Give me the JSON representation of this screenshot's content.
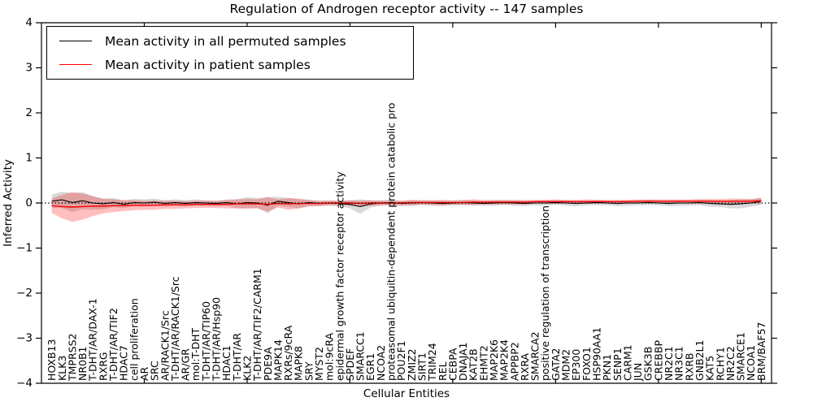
{
  "title": "Regulation of Androgen receptor activity -- 147 samples",
  "legend": {
    "items": [
      {
        "label": "Mean activity in all permuted samples",
        "color": "#000000"
      },
      {
        "label": "Mean activity in patient samples",
        "color": "#ff0000"
      }
    ]
  },
  "axes": {
    "ylabel": "Inferred Activity",
    "xlabel": "Cellular Entities",
    "yticks": [
      {
        "value": 4,
        "label": "4"
      },
      {
        "value": 3,
        "label": "3"
      },
      {
        "value": 2,
        "label": "2"
      },
      {
        "value": 1,
        "label": "1"
      },
      {
        "value": 0,
        "label": "0"
      },
      {
        "value": -1,
        "label": "−1"
      },
      {
        "value": -2,
        "label": "−2"
      },
      {
        "value": -3,
        "label": "−3"
      },
      {
        "value": -4,
        "label": "−4"
      }
    ]
  },
  "chart_data": {
    "type": "line",
    "title": "Regulation of Androgen receptor activity -- 147 samples",
    "xlabel": "Cellular Entities",
    "ylabel": "Inferred Activity",
    "ylim": [
      -4,
      4
    ],
    "grid": false,
    "legend_position": "upper left",
    "zero_line": true,
    "x_major_tick_every": 10,
    "categories": [
      "HOXB13",
      "KLK3",
      "TMPRSS2",
      "NR0B1",
      "T-DHT/AR/DAX-1",
      "RXRG",
      "T-DHT/AR/TIF2",
      "HDAC7",
      "cell proliferation",
      "AR",
      "SRC",
      "AR/RACK1/Src",
      "T-DHT/AR/RACK1/Src",
      "AR/GR",
      "mol:T-DHT",
      "T-DHT/AR/TIP60",
      "T-DHT/AR/Hsp90",
      "HDAC1",
      "T-DHT/AR",
      "KLK2",
      "T-DHT/AR/TIF2/CARM1",
      "PDE9A",
      "MAPK14",
      "RXRs/9cRA",
      "MAPK8",
      "SRY",
      "MYST2",
      "mol:9cRA",
      "epidermal growth factor receptor activity",
      "SPDEF",
      "SMARCC1",
      "EGR1",
      "NCOA2",
      "proteasomal ubiquitin-dependent protein catabolic pro",
      "POU2F1",
      "ZMIZ2",
      "SIRT1",
      "TRIM24",
      "REL",
      "CEBPA",
      "DNAJA1",
      "KAT2B",
      "EHMT2",
      "MAP2K6",
      "MAP2K4",
      "APPBP2",
      "RXRA",
      "SMARCA2",
      "positive regulation of transcription",
      "GATA2",
      "MDM2",
      "EP300",
      "FOXO1",
      "HSP90AA1",
      "PKN1",
      "SENP1",
      "CARM1",
      "JUN",
      "GSK3B",
      "CREBBP",
      "NR2C1",
      "NR3C1",
      "RXRB",
      "GNB2L1",
      "KAT5",
      "RCHY1",
      "NR2C2",
      "SMARCE1",
      "NCOA1",
      "BRM/BAF57"
    ],
    "series": [
      {
        "name": "Mean activity in all permuted samples",
        "color": "#000000",
        "band_color": "rgba(0,0,0,0.15)",
        "values": [
          0.04,
          0.07,
          0.01,
          0.05,
          0.0,
          -0.02,
          0.01,
          -0.03,
          0.01,
          0.0,
          0.02,
          -0.01,
          0.01,
          -0.01,
          0.01,
          0.0,
          -0.01,
          0.01,
          -0.02,
          0.01,
          0.0,
          -0.05,
          0.04,
          0.01,
          -0.02,
          0.01,
          -0.01,
          0.0,
          -0.01,
          -0.03,
          -0.08,
          -0.02,
          0.0,
          0.01,
          -0.01,
          0.0,
          0.01,
          0.0,
          -0.01,
          0.0,
          0.01,
          0.0,
          -0.01,
          0.0,
          0.01,
          0.0,
          -0.01,
          0.0,
          0.0,
          0.01,
          0.0,
          -0.01,
          0.0,
          0.01,
          0.0,
          -0.01,
          0.0,
          0.0,
          0.01,
          0.0,
          -0.01,
          0.0,
          0.0,
          0.01,
          -0.01,
          -0.02,
          -0.03,
          -0.02,
          0.0,
          0.04
        ],
        "sd": [
          0.15,
          0.18,
          0.21,
          0.19,
          0.15,
          0.12,
          0.1,
          0.09,
          0.08,
          0.08,
          0.08,
          0.07,
          0.07,
          0.07,
          0.07,
          0.06,
          0.06,
          0.07,
          0.1,
          0.12,
          0.11,
          0.18,
          0.1,
          0.1,
          0.1,
          0.07,
          0.06,
          0.06,
          0.06,
          0.09,
          0.16,
          0.08,
          0.06,
          0.06,
          0.06,
          0.06,
          0.05,
          0.06,
          0.06,
          0.05,
          0.06,
          0.06,
          0.05,
          0.06,
          0.05,
          0.06,
          0.06,
          0.05,
          0.06,
          0.05,
          0.06,
          0.06,
          0.05,
          0.06,
          0.05,
          0.06,
          0.06,
          0.05,
          0.06,
          0.05,
          0.06,
          0.06,
          0.06,
          0.06,
          0.07,
          0.07,
          0.09,
          0.1,
          0.08,
          0.08
        ]
      },
      {
        "name": "Mean activity in patient samples",
        "color": "#ff0000",
        "band_color": "rgba(255,0,0,0.25)",
        "values": [
          -0.06,
          -0.08,
          -0.09,
          -0.08,
          -0.07,
          -0.07,
          -0.06,
          -0.06,
          -0.05,
          -0.05,
          -0.05,
          -0.04,
          -0.04,
          -0.04,
          -0.03,
          -0.03,
          -0.03,
          -0.03,
          -0.02,
          -0.02,
          -0.02,
          -0.03,
          -0.01,
          -0.02,
          -0.01,
          -0.01,
          -0.01,
          0.0,
          0.0,
          0.0,
          -0.01,
          0.0,
          0.0,
          0.0,
          0.0,
          0.01,
          0.01,
          0.01,
          0.01,
          0.01,
          0.01,
          0.02,
          0.02,
          0.02,
          0.02,
          0.02,
          0.02,
          0.03,
          0.03,
          0.03,
          0.03,
          0.03,
          0.03,
          0.03,
          0.03,
          0.03,
          0.03,
          0.04,
          0.04,
          0.04,
          0.04,
          0.04,
          0.04,
          0.04,
          0.04,
          0.04,
          0.04,
          0.04,
          0.04,
          0.05
        ],
        "sd": [
          0.16,
          0.26,
          0.33,
          0.29,
          0.22,
          0.16,
          0.14,
          0.12,
          0.11,
          0.1,
          0.1,
          0.09,
          0.09,
          0.08,
          0.08,
          0.08,
          0.08,
          0.09,
          0.1,
          0.11,
          0.1,
          0.16,
          0.09,
          0.13,
          0.11,
          0.07,
          0.06,
          0.05,
          0.05,
          0.06,
          0.06,
          0.06,
          0.05,
          0.05,
          0.05,
          0.06,
          0.05,
          0.05,
          0.06,
          0.05,
          0.05,
          0.06,
          0.05,
          0.05,
          0.05,
          0.05,
          0.05,
          0.04,
          0.04,
          0.05,
          0.04,
          0.04,
          0.05,
          0.04,
          0.04,
          0.04,
          0.04,
          0.04,
          0.04,
          0.04,
          0.04,
          0.04,
          0.04,
          0.05,
          0.05,
          0.05,
          0.06,
          0.06,
          0.05,
          0.06
        ]
      }
    ]
  }
}
